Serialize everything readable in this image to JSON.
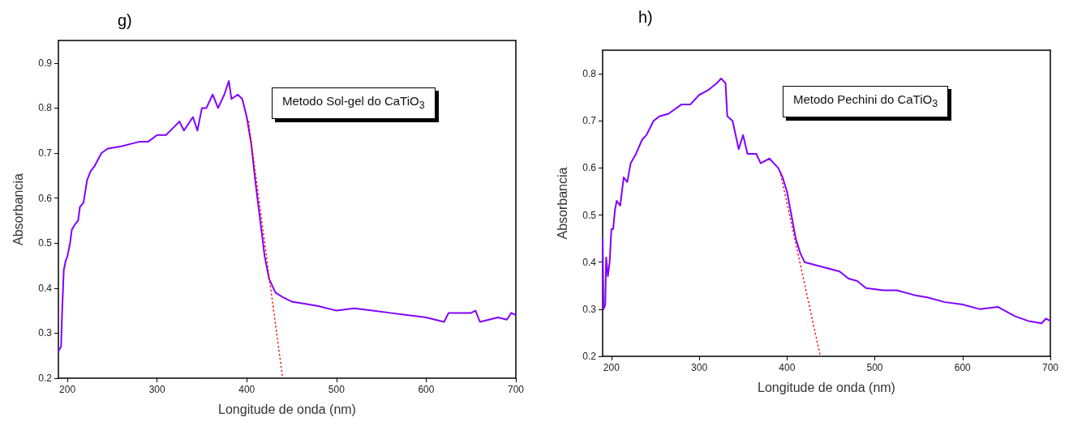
{
  "chart_data": [
    {
      "type": "line",
      "title": "g)",
      "xlabel": "Longitude de onda (nm)",
      "ylabel": "Absorbancia",
      "annotations": [
        "Metodo Sol-gel do CaTiO$_{3}$"
      ],
      "xlim": [
        190,
        700
      ],
      "ylim": [
        0.2,
        0.95
      ],
      "xticks": [
        200,
        300,
        400,
        500,
        600,
        700
      ],
      "yticks": [
        0.2,
        0.3,
        0.4,
        0.5,
        0.6,
        0.7,
        0.8,
        0.9
      ],
      "grid": false,
      "marker": "none",
      "series": [
        {
          "color": "#8000ff",
          "line_style": "solid",
          "x": [
            190,
            193,
            194,
            196,
            198,
            200,
            203,
            205,
            208,
            212,
            214,
            218,
            222,
            226,
            230,
            238,
            245,
            260,
            270,
            280,
            290,
            300,
            310,
            320,
            325,
            330,
            340,
            345,
            350,
            355,
            362,
            368,
            375,
            380,
            383,
            390,
            395,
            400,
            405,
            410,
            415,
            420,
            425,
            432,
            440,
            450,
            460,
            480,
            500,
            520,
            540,
            560,
            580,
            600,
            620,
            625,
            650,
            655,
            660,
            680,
            690,
            695,
            700
          ],
          "values": [
            0.26,
            0.27,
            0.34,
            0.44,
            0.46,
            0.47,
            0.5,
            0.53,
            0.54,
            0.55,
            0.58,
            0.59,
            0.64,
            0.66,
            0.67,
            0.7,
            0.71,
            0.715,
            0.72,
            0.725,
            0.725,
            0.74,
            0.74,
            0.76,
            0.77,
            0.75,
            0.78,
            0.75,
            0.8,
            0.8,
            0.83,
            0.8,
            0.83,
            0.86,
            0.82,
            0.83,
            0.82,
            0.78,
            0.72,
            0.63,
            0.55,
            0.47,
            0.42,
            0.39,
            0.38,
            0.37,
            0.367,
            0.36,
            0.35,
            0.355,
            0.35,
            0.345,
            0.34,
            0.335,
            0.325,
            0.345,
            0.345,
            0.35,
            0.325,
            0.335,
            0.33,
            0.345,
            0.34
          ]
        },
        {
          "color": "#ff0000",
          "line_style": "dotted",
          "x": [
            402,
            440
          ],
          "values": [
            0.77,
            0.2
          ]
        }
      ]
    },
    {
      "type": "line",
      "title": "h)",
      "xlabel": "Longitude de onda (nm)",
      "ylabel": "Absorbancia",
      "annotations": [
        "Metodo Pechini do CaTiO$_{3}$"
      ],
      "xlim": [
        190,
        700
      ],
      "ylim": [
        0.2,
        0.85
      ],
      "xticks": [
        200,
        300,
        400,
        500,
        600,
        700
      ],
      "yticks": [
        0.2,
        0.3,
        0.4,
        0.5,
        0.6,
        0.7,
        0.8
      ],
      "grid": false,
      "marker": "none",
      "series": [
        {
          "color": "#8000ff",
          "line_style": "solid",
          "x": [
            190,
            191,
            193,
            194,
            196,
            198,
            200,
            202,
            204,
            206,
            210,
            212,
            214,
            218,
            222,
            228,
            235,
            240,
            248,
            255,
            265,
            280,
            290,
            300,
            310,
            320,
            325,
            330,
            332,
            338,
            345,
            350,
            355,
            365,
            370,
            380,
            390,
            395,
            400,
            405,
            410,
            415,
            420,
            440,
            460,
            470,
            480,
            490,
            510,
            525,
            545,
            560,
            580,
            600,
            620,
            640,
            660,
            675,
            690,
            695,
            700
          ],
          "values": [
            0.45,
            0.3,
            0.31,
            0.41,
            0.37,
            0.4,
            0.47,
            0.47,
            0.51,
            0.53,
            0.52,
            0.55,
            0.58,
            0.57,
            0.61,
            0.63,
            0.66,
            0.67,
            0.7,
            0.71,
            0.715,
            0.735,
            0.735,
            0.755,
            0.765,
            0.78,
            0.79,
            0.78,
            0.71,
            0.7,
            0.64,
            0.67,
            0.63,
            0.63,
            0.61,
            0.62,
            0.6,
            0.58,
            0.55,
            0.5,
            0.45,
            0.42,
            0.4,
            0.39,
            0.38,
            0.365,
            0.36,
            0.345,
            0.34,
            0.34,
            0.33,
            0.325,
            0.315,
            0.31,
            0.3,
            0.305,
            0.285,
            0.275,
            0.27,
            0.28,
            0.275
          ]
        },
        {
          "color": "#ff0000",
          "line_style": "dotted",
          "x": [
            393,
            438
          ],
          "values": [
            0.585,
            0.2
          ]
        }
      ]
    }
  ]
}
